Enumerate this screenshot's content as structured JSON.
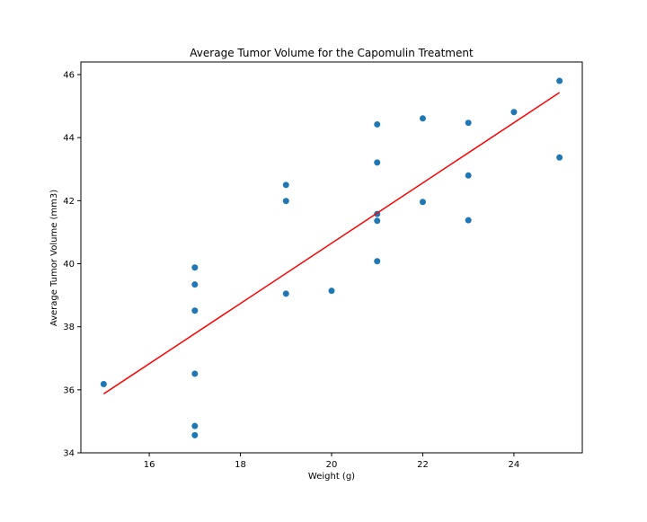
{
  "chart_data": {
    "type": "scatter",
    "title": "Average Tumor Volume for the Capomulin Treatment",
    "xlabel": "Weight (g)",
    "ylabel": "Average Tumor Volume (mm3)",
    "xlim": [
      14.5,
      25.5
    ],
    "ylim": [
      34.0,
      46.4
    ],
    "xticks": [
      16,
      18,
      20,
      22,
      24
    ],
    "yticks": [
      34,
      36,
      38,
      40,
      42,
      44,
      46
    ],
    "grid": false,
    "points": [
      {
        "x": 15,
        "y": 36.18
      },
      {
        "x": 17,
        "y": 39.88
      },
      {
        "x": 17,
        "y": 39.34
      },
      {
        "x": 17,
        "y": 38.51
      },
      {
        "x": 17,
        "y": 36.51
      },
      {
        "x": 17,
        "y": 34.85
      },
      {
        "x": 17,
        "y": 34.56
      },
      {
        "x": 19,
        "y": 42.5
      },
      {
        "x": 19,
        "y": 41.99
      },
      {
        "x": 19,
        "y": 39.05
      },
      {
        "x": 20,
        "y": 39.14
      },
      {
        "x": 21,
        "y": 44.42
      },
      {
        "x": 21,
        "y": 43.21
      },
      {
        "x": 21,
        "y": 41.58
      },
      {
        "x": 21,
        "y": 41.36
      },
      {
        "x": 21,
        "y": 40.08
      },
      {
        "x": 22,
        "y": 44.61
      },
      {
        "x": 22,
        "y": 41.96
      },
      {
        "x": 23,
        "y": 44.47
      },
      {
        "x": 23,
        "y": 42.8
      },
      {
        "x": 23,
        "y": 41.38
      },
      {
        "x": 24,
        "y": 44.81
      },
      {
        "x": 25,
        "y": 45.8
      },
      {
        "x": 25,
        "y": 43.37
      }
    ],
    "regression": {
      "x0": 15,
      "y0": 35.87,
      "x1": 25,
      "y1": 45.43
    },
    "point_color": "#1f77b4",
    "line_color": "#ff0000"
  }
}
